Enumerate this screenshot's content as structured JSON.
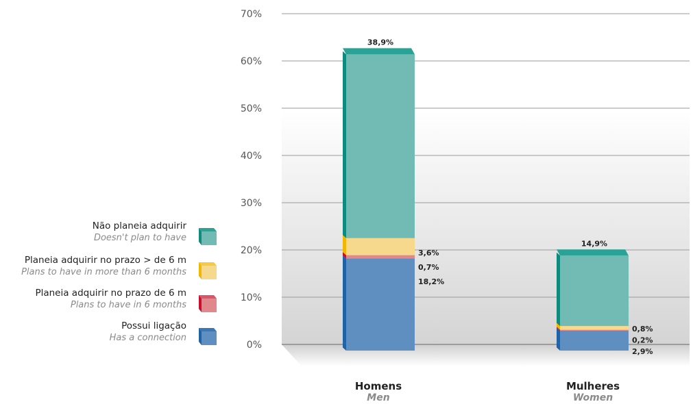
{
  "chart_data": {
    "type": "bar",
    "stacked": true,
    "ylim": [
      0,
      70
    ],
    "yticks": [
      "0%",
      "10%",
      "20%",
      "30%",
      "40%",
      "50%",
      "60%",
      "70%"
    ],
    "yticks_values": [
      0,
      10,
      20,
      30,
      40,
      50,
      60,
      70
    ],
    "grid": true,
    "legend_position": "left",
    "categories": [
      {
        "pt": "Homens",
        "en": "Men"
      },
      {
        "pt": "Mulheres",
        "en": "Women"
      }
    ],
    "series": [
      {
        "name": "Possui ligação",
        "name_en": "Has a connection",
        "color": "#5f8fc0",
        "dark": "#1f63a6",
        "top": "#3b77b2",
        "values": [
          18.2,
          2.9
        ],
        "labels": [
          "18,2%",
          "2,9%"
        ]
      },
      {
        "name": "Planeia adquirir no prazo de 6 m",
        "name_en": "Plans to have in 6 months",
        "color": "#e0888c",
        "dark": "#c8102e",
        "top": "#d9566a",
        "values": [
          0.7,
          0.2
        ],
        "labels": [
          "0,7%",
          "0,2%"
        ]
      },
      {
        "name": "Planeia adquirir no prazo > de 6 m",
        "name_en": "Plans to have in more than 6 months",
        "color": "#f7d98e",
        "dark": "#f2b705",
        "top": "#f5c940",
        "values": [
          3.6,
          0.8
        ],
        "labels": [
          "3,6%",
          "0,8%"
        ]
      },
      {
        "name": "Não planeia adquirir",
        "name_en": "Doesn't plan to have",
        "color": "#72bab4",
        "dark": "#0e8a7e",
        "top": "#2aa296",
        "values": [
          38.9,
          14.9
        ],
        "labels": [
          "38,9%",
          "14,9%"
        ]
      }
    ]
  }
}
